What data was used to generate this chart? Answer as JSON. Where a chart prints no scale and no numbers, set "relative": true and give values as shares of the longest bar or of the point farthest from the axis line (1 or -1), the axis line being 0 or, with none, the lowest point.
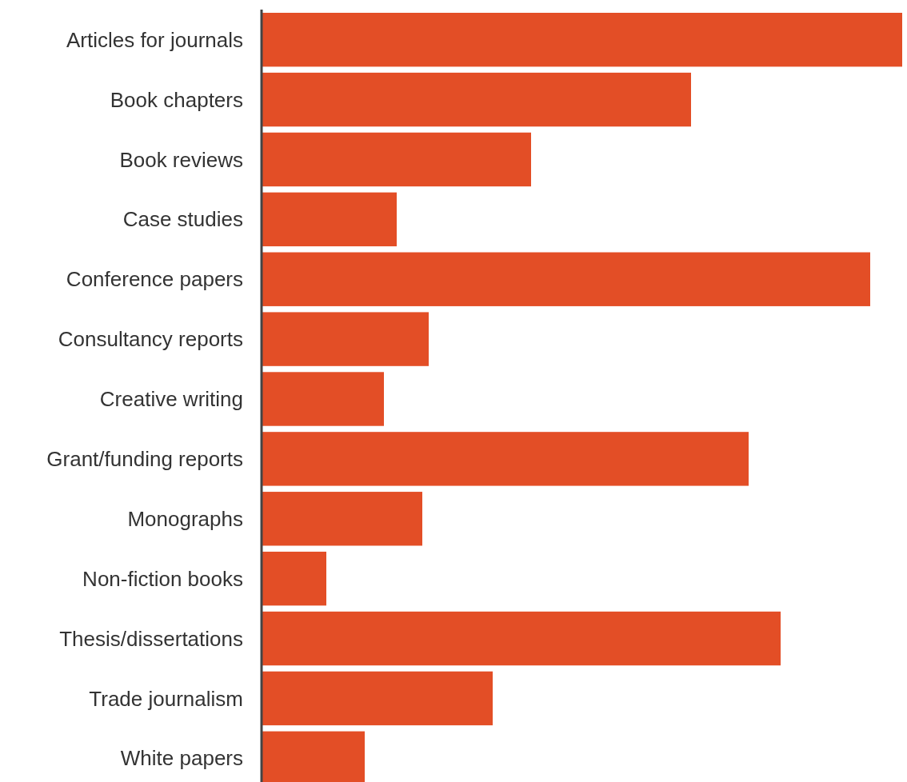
{
  "chart_data": {
    "type": "bar",
    "orientation": "horizontal",
    "relative": true,
    "color": "#e34e26",
    "categories": [
      "Articles for journals",
      "Book chapters",
      "Book reviews",
      "Case studies",
      "Conference papers",
      "Consultancy reports",
      "Creative writing",
      "Grant/funding reports",
      "Monographs",
      "Non-fiction books",
      "Thesis/dissertations",
      "Trade journalism",
      "White papers"
    ],
    "values": [
      1,
      0.67,
      0.42,
      0.21,
      0.95,
      0.26,
      0.19,
      0.76,
      0.25,
      0.1,
      0.81,
      0.36,
      0.16
    ]
  }
}
